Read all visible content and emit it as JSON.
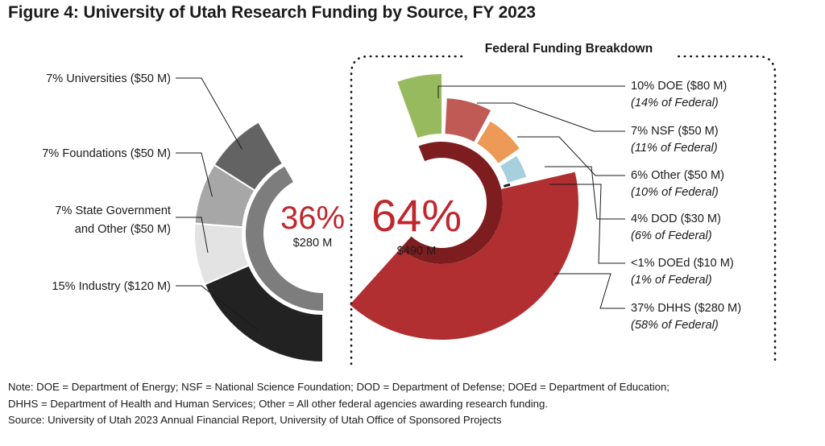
{
  "title": "Figure 4: University of Utah Research Funding by Source, FY 2023",
  "notes": [
    "Note: DOE = Department of Energy; NSF = National Science Foundation; DOD = Department of Defense; DOEd = Department of Education;",
    "DHHS = Department of Health and Human Services; Other = All other federal agencies awarding research funding.",
    "Source: University of Utah 2023 Annual Financial Report, University of Utah Office of Sponsored Projects"
  ],
  "chart_data": [
    {
      "type": "pie",
      "subtype": "half-donut",
      "center_label": "36%",
      "center_sublabel": "$280 M",
      "inner_ring": {
        "label": "36%",
        "value": 280,
        "color": "#7d7d7d"
      },
      "slices": [
        {
          "label": "7% Universities ($50 M)",
          "value": 50,
          "pct": 7,
          "color": "#636363"
        },
        {
          "label": "7% Foundations ($50 M)",
          "value": 50,
          "pct": 7,
          "color": "#a7a7a7"
        },
        {
          "label": "7% State Government",
          "label2": "and Other ($50 M)",
          "value": 50,
          "pct": 7,
          "color": "#e3e3e3"
        },
        {
          "label": "15% Industry ($120 M)",
          "value": 120,
          "pct": 15,
          "color": "#222222"
        }
      ]
    },
    {
      "type": "pie",
      "subtype": "half-donut",
      "heading": "Federal Funding Breakdown",
      "center_label": "64%",
      "center_sublabel": "$490 M",
      "inner_ring": {
        "label": "64%",
        "value": 490,
        "color": "#7e1d1f"
      },
      "slices": [
        {
          "label": "10% DOE ($80 M)",
          "sublabel": "(14% of Federal)",
          "value": 80,
          "pct": 10,
          "fed_pct": 14,
          "color": "#98ba5f"
        },
        {
          "label": "7% NSF ($50 M)",
          "sublabel": "(11% of Federal)",
          "value": 50,
          "pct": 7,
          "fed_pct": 11,
          "color": "#c05a54"
        },
        {
          "label": "6% Other ($50 M)",
          "sublabel": "(10% of Federal)",
          "value": 50,
          "pct": 6,
          "fed_pct": 10,
          "color": "#ec9a55"
        },
        {
          "label": "4% DOD ($30 M)",
          "sublabel": "(6% of Federal)",
          "value": 30,
          "pct": 4,
          "fed_pct": 6,
          "color": "#a6d0de"
        },
        {
          "label": "<1% DOEd ($10 M)",
          "sublabel": "(1% of Federal)",
          "value": 10,
          "pct": 1,
          "fed_pct": 1,
          "color": "#1c1c1c"
        },
        {
          "label": "37% DHHS ($280 M)",
          "sublabel": "(58% of Federal)",
          "value": 280,
          "pct": 37,
          "fed_pct": 58,
          "color": "#b12f31"
        }
      ]
    }
  ]
}
